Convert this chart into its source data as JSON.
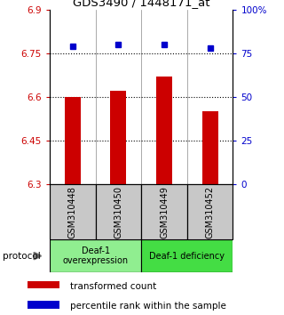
{
  "title": "GDS3490 / 1448171_at",
  "samples": [
    "GSM310448",
    "GSM310450",
    "GSM310449",
    "GSM310452"
  ],
  "red_values": [
    6.6,
    6.62,
    6.67,
    6.55
  ],
  "blue_values": [
    79,
    80,
    80,
    78
  ],
  "ylim_left": [
    6.3,
    6.9
  ],
  "ylim_right": [
    0,
    100
  ],
  "yticks_left": [
    6.3,
    6.45,
    6.6,
    6.75,
    6.9
  ],
  "ytick_labels_left": [
    "6.3",
    "6.45",
    "6.6",
    "6.75",
    "6.9"
  ],
  "yticks_right": [
    0,
    25,
    50,
    75,
    100
  ],
  "ytick_labels_right": [
    "0",
    "25",
    "50",
    "75",
    "100%"
  ],
  "hlines": [
    6.45,
    6.6,
    6.75
  ],
  "bar_color": "#cc0000",
  "dot_color": "#0000cc",
  "group1_label": "Deaf-1\noverexpression",
  "group2_label": "Deaf-1 deficiency",
  "group1_color": "#90ee90",
  "group2_color": "#44dd44",
  "group1_samples": [
    0,
    1
  ],
  "group2_samples": [
    2,
    3
  ],
  "protocol_label": "protocol",
  "legend_red": "transformed count",
  "legend_blue": "percentile rank within the sample",
  "bar_bottom": 6.3,
  "tick_color_left": "#cc0000",
  "tick_color_right": "#0000cc",
  "sample_box_color": "#c8c8c8",
  "bar_width": 0.35
}
